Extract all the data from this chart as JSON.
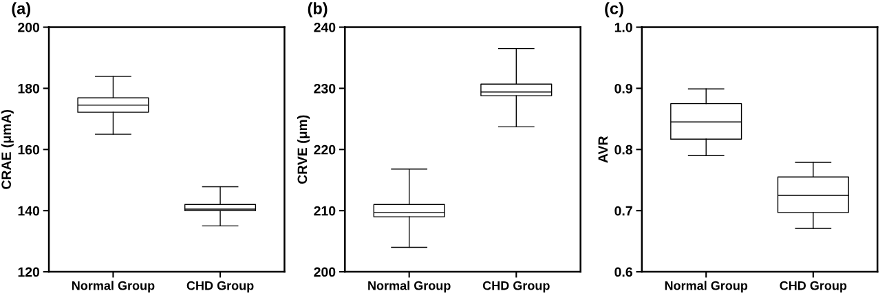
{
  "chart_data": [
    {
      "type": "box",
      "title": "(a)",
      "ylabel": "CRAE (μmA)",
      "categories": [
        "Normal Group",
        "CHD Group"
      ],
      "ylim": [
        120,
        200
      ],
      "yticks": [
        120,
        140,
        160,
        180,
        200
      ],
      "grid": false,
      "boxes": [
        {
          "low": 165,
          "q1": 172.2,
          "median": 174.5,
          "q3": 176.9,
          "high": 183.9
        },
        {
          "low": 135,
          "q1": 140.0,
          "median": 140.5,
          "q3": 142.0,
          "high": 147.8
        }
      ]
    },
    {
      "type": "box",
      "title": "(b)",
      "ylabel": "CRVE (μm)",
      "categories": [
        "Normal Group",
        "CHD Group"
      ],
      "ylim": [
        200,
        240
      ],
      "yticks": [
        200,
        210,
        220,
        230,
        240
      ],
      "grid": false,
      "boxes": [
        {
          "low": 204.0,
          "q1": 209.0,
          "median": 209.7,
          "q3": 211.0,
          "high": 216.8
        },
        {
          "low": 223.7,
          "q1": 228.8,
          "median": 229.4,
          "q3": 230.7,
          "high": 236.5
        }
      ]
    },
    {
      "type": "box",
      "title": "(c)",
      "ylabel": "AVR",
      "categories": [
        "Normal Group",
        "CHD Group"
      ],
      "ylim": [
        0.6,
        1.0
      ],
      "yticks": [
        {
          "value": 0.6,
          "label": "0.6"
        },
        {
          "value": 0.7,
          "label": "0.7"
        },
        {
          "value": 0.8,
          "label": "0.8"
        },
        {
          "value": 0.9,
          "label": "0.9"
        },
        {
          "value": 1.0,
          "label": "1.0"
        }
      ],
      "grid": false,
      "boxes": [
        {
          "low": 0.79,
          "q1": 0.817,
          "median": 0.845,
          "q3": 0.875,
          "high": 0.899
        },
        {
          "low": 0.671,
          "q1": 0.697,
          "median": 0.725,
          "q3": 0.755,
          "high": 0.779
        }
      ]
    }
  ]
}
